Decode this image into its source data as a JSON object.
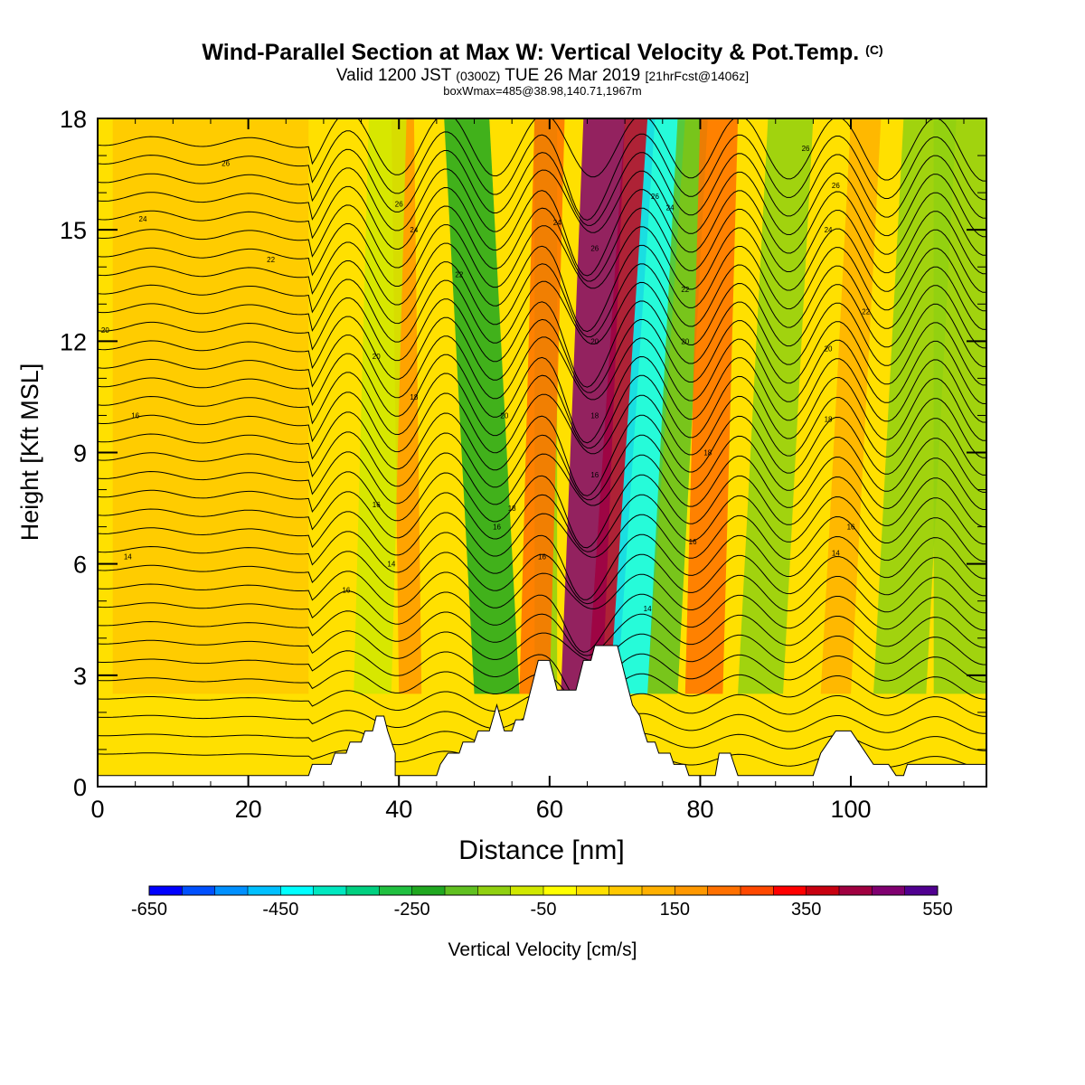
{
  "header": {
    "title": "Wind-Parallel Section at Max W: Vertical Velocity & Pot.Temp.",
    "title_mark": "(C)",
    "valid_prefix": "Valid 1200 JST",
    "valid_utc": "(0300Z)",
    "valid_date": "TUE 26 Mar 2019",
    "forecast_info": "[21hrFcst@1406z]",
    "box_info": "boxWmax=485@38.98,140.71,1967m"
  },
  "chart_data": {
    "type": "heatmap",
    "xlabel": "Distance [nm]",
    "ylabel": "Height [Kft MSL]",
    "xlim": [
      0,
      118
    ],
    "ylim": [
      0,
      18
    ],
    "x_ticks": [
      0,
      20,
      40,
      60,
      80,
      100
    ],
    "y_ticks": [
      0,
      3,
      6,
      9,
      12,
      15,
      18
    ],
    "grid": false,
    "colorbar": {
      "label": "Vertical Velocity [cm/s]",
      "placement": "bottom",
      "min": -650,
      "max": 550,
      "step": 50,
      "tick_labels": [
        "-650",
        "-450",
        "-250",
        "-50",
        "150",
        "350",
        "550"
      ],
      "colors": [
        "#0000ff",
        "#0050ff",
        "#0090ff",
        "#00c0ff",
        "#00ffff",
        "#00e8c0",
        "#00d080",
        "#20c040",
        "#20a820",
        "#60c020",
        "#90d010",
        "#d0e800",
        "#ffff00",
        "#ffe000",
        "#ffc800",
        "#ffb000",
        "#ff9800",
        "#ff7000",
        "#ff4800",
        "#ff0000",
        "#c80010",
        "#a00040",
        "#800070",
        "#500090"
      ]
    },
    "velocity_bands": [
      {
        "x0": 61.5,
        "x1": 67,
        "x_top_shift": 3,
        "value": 485
      },
      {
        "x0": 65,
        "x1": 69,
        "x_top_shift": 5,
        "value": 400
      },
      {
        "x0": 68,
        "x1": 73,
        "x_top_shift": 5,
        "value": -450
      },
      {
        "x0": 50,
        "x1": 56,
        "x_top_shift": -4,
        "value": -250
      },
      {
        "x0": 58,
        "x1": 61,
        "x_top_shift": 0,
        "value": -150
      },
      {
        "x0": 56,
        "x1": 60,
        "x_top_shift": 2,
        "value": 200
      },
      {
        "x0": 73,
        "x1": 77,
        "x_top_shift": 4,
        "value": -200
      },
      {
        "x0": 78,
        "x1": 83,
        "x_top_shift": 2,
        "value": 200
      },
      {
        "x0": 40,
        "x1": 43,
        "x_top_shift": -1,
        "value": 150
      },
      {
        "x0": 34,
        "x1": 39,
        "x_top_shift": 2,
        "value": -80
      },
      {
        "x0": 85,
        "x1": 91,
        "x_top_shift": 4,
        "value": -150
      },
      {
        "x0": 96,
        "x1": 100,
        "x_top_shift": 4,
        "value": 100
      },
      {
        "x0": 103,
        "x1": 110,
        "x_top_shift": 4,
        "value": -150
      },
      {
        "x0": 111,
        "x1": 118,
        "x_top_shift": 0,
        "value": -120
      },
      {
        "x0": 2,
        "x1": 28,
        "x_top_shift": 0,
        "value": 60
      }
    ],
    "terrain_kft": [
      [
        0,
        0.3
      ],
      [
        28,
        0.3
      ],
      [
        28.5,
        0.6
      ],
      [
        31,
        0.6
      ],
      [
        31.5,
        0.9
      ],
      [
        33,
        0.9
      ],
      [
        33.5,
        1.2
      ],
      [
        35,
        1.2
      ],
      [
        35.5,
        1.5
      ],
      [
        36.5,
        1.5
      ],
      [
        37,
        1.9
      ],
      [
        38,
        1.9
      ],
      [
        38.5,
        1.5
      ],
      [
        39,
        1.2
      ],
      [
        39.5,
        0.9
      ],
      [
        39.5,
        0.3
      ],
      [
        42,
        0.3
      ],
      [
        44,
        0.3
      ],
      [
        45,
        0.3
      ],
      [
        45.5,
        0.6
      ],
      [
        46.5,
        0.9
      ],
      [
        48,
        0.9
      ],
      [
        48.5,
        1.2
      ],
      [
        50,
        1.2
      ],
      [
        50.5,
        1.5
      ],
      [
        52,
        1.5
      ],
      [
        53,
        2.2
      ],
      [
        54,
        1.5
      ],
      [
        55,
        1.5
      ],
      [
        55.5,
        1.8
      ],
      [
        56.5,
        1.8
      ],
      [
        57,
        2.2
      ],
      [
        57.5,
        2.6
      ],
      [
        58,
        3.0
      ],
      [
        58.5,
        3.4
      ],
      [
        60,
        3.4
      ],
      [
        60.5,
        3.0
      ],
      [
        61,
        2.6
      ],
      [
        62,
        2.6
      ],
      [
        62.5,
        2.6
      ],
      [
        63.5,
        2.6
      ],
      [
        64,
        3.0
      ],
      [
        64.5,
        3.4
      ],
      [
        65.5,
        3.4
      ],
      [
        66,
        3.8
      ],
      [
        69,
        3.8
      ],
      [
        69.5,
        3.4
      ],
      [
        70,
        3.0
      ],
      [
        70.5,
        2.6
      ],
      [
        71,
        2.2
      ],
      [
        72,
        1.9
      ],
      [
        72.5,
        1.5
      ],
      [
        73,
        1.2
      ],
      [
        74,
        1.2
      ],
      [
        74.5,
        0.9
      ],
      [
        76,
        0.9
      ],
      [
        76.5,
        0.6
      ],
      [
        78,
        0.6
      ],
      [
        78.5,
        0.3
      ],
      [
        82,
        0.3
      ],
      [
        82.5,
        0.9
      ],
      [
        84,
        0.9
      ],
      [
        84.5,
        0.6
      ],
      [
        85,
        0.3
      ],
      [
        95,
        0.3
      ],
      [
        96,
        0.9
      ],
      [
        97,
        1.2
      ],
      [
        98,
        1.5
      ],
      [
        100,
        1.5
      ],
      [
        101,
        1.2
      ],
      [
        102,
        0.9
      ],
      [
        103,
        0.6
      ],
      [
        105,
        0.6
      ],
      [
        106,
        0.3
      ],
      [
        107,
        0.3
      ],
      [
        107.5,
        0.6
      ],
      [
        118,
        0.6
      ],
      [
        118,
        0.3
      ]
    ],
    "theta_contour_labels": [
      {
        "text": "26",
        "x": 17,
        "y": 16.8
      },
      {
        "text": "24",
        "x": 6,
        "y": 15.3
      },
      {
        "text": "22",
        "x": 23,
        "y": 14.2
      },
      {
        "text": "20",
        "x": 1,
        "y": 12.3
      },
      {
        "text": "16",
        "x": 5,
        "y": 10.0
      },
      {
        "text": "14",
        "x": 4,
        "y": 6.2
      },
      {
        "text": "16",
        "x": 33,
        "y": 5.3
      },
      {
        "text": "14",
        "x": 39,
        "y": 6.0
      },
      {
        "text": "16",
        "x": 37,
        "y": 7.6
      },
      {
        "text": "20",
        "x": 37,
        "y": 11.6
      },
      {
        "text": "18",
        "x": 42,
        "y": 10.5
      },
      {
        "text": "24",
        "x": 42,
        "y": 15.0
      },
      {
        "text": "26",
        "x": 40,
        "y": 15.7
      },
      {
        "text": "22",
        "x": 48,
        "y": 13.8
      },
      {
        "text": "20",
        "x": 54,
        "y": 10.0
      },
      {
        "text": "18",
        "x": 55,
        "y": 7.5
      },
      {
        "text": "16",
        "x": 53,
        "y": 7.0
      },
      {
        "text": "16",
        "x": 59,
        "y": 6.2
      },
      {
        "text": "24",
        "x": 61,
        "y": 15.2
      },
      {
        "text": "26",
        "x": 66,
        "y": 14.5
      },
      {
        "text": "20",
        "x": 66,
        "y": 12.0
      },
      {
        "text": "18",
        "x": 66,
        "y": 10.0
      },
      {
        "text": "16",
        "x": 66,
        "y": 8.4
      },
      {
        "text": "26",
        "x": 74,
        "y": 15.9
      },
      {
        "text": "24",
        "x": 76,
        "y": 15.6
      },
      {
        "text": "22",
        "x": 78,
        "y": 13.4
      },
      {
        "text": "20",
        "x": 78,
        "y": 12.0
      },
      {
        "text": "18",
        "x": 81,
        "y": 9.0
      },
      {
        "text": "16",
        "x": 79,
        "y": 6.6
      },
      {
        "text": "14",
        "x": 73,
        "y": 4.8
      },
      {
        "text": "26",
        "x": 94,
        "y": 17.2
      },
      {
        "text": "26",
        "x": 98,
        "y": 16.2
      },
      {
        "text": "24",
        "x": 97,
        "y": 15.0
      },
      {
        "text": "22",
        "x": 102,
        "y": 12.8
      },
      {
        "text": "20",
        "x": 97,
        "y": 11.8
      },
      {
        "text": "18",
        "x": 97,
        "y": 9.9
      },
      {
        "text": "16",
        "x": 100,
        "y": 7.0
      },
      {
        "text": "14",
        "x": 98,
        "y": 6.3
      }
    ]
  }
}
